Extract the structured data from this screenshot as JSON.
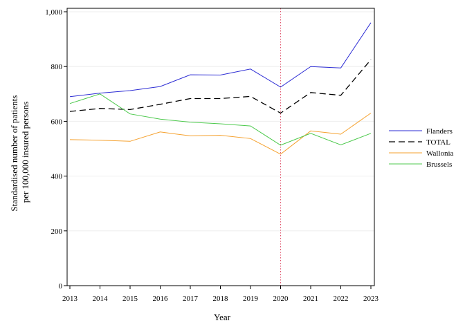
{
  "chart_data": {
    "type": "line",
    "title": "",
    "xlabel": "Year",
    "ylabel_lines": [
      "Standardised number of patients",
      "per 100,000 insured persons"
    ],
    "x": [
      2013,
      2014,
      2015,
      2016,
      2017,
      2018,
      2019,
      2020,
      2021,
      2022,
      2023
    ],
    "xlim": [
      2013,
      2023
    ],
    "ylim": [
      0,
      1000
    ],
    "yticks": [
      0,
      200,
      400,
      600,
      800,
      1000
    ],
    "ytick_labels": [
      "0",
      "200",
      "400",
      "600",
      "800",
      "1,000"
    ],
    "grid": "horizontal",
    "legend_position": "right",
    "reference_line": {
      "x": 2020,
      "color": "#e0506a",
      "style": "dotted"
    },
    "series": [
      {
        "name": "Flanders",
        "color": "#2b2bd4",
        "dash": "solid",
        "values": [
          690,
          703,
          712,
          727,
          770,
          769,
          791,
          725,
          800,
          795,
          960
        ]
      },
      {
        "name": "TOTAL",
        "color": "#000000",
        "dash": "dashed",
        "values": [
          636,
          647,
          643,
          662,
          683,
          683,
          691,
          630,
          705,
          695,
          825
        ]
      },
      {
        "name": "Wallonia",
        "color": "#f5a02c",
        "dash": "solid",
        "values": [
          533,
          531,
          527,
          561,
          547,
          549,
          537,
          480,
          565,
          553,
          630
        ]
      },
      {
        "name": "Brussels",
        "color": "#4cc94c",
        "dash": "solid",
        "values": [
          665,
          700,
          627,
          608,
          597,
          591,
          583,
          513,
          556,
          514,
          556
        ]
      }
    ]
  }
}
